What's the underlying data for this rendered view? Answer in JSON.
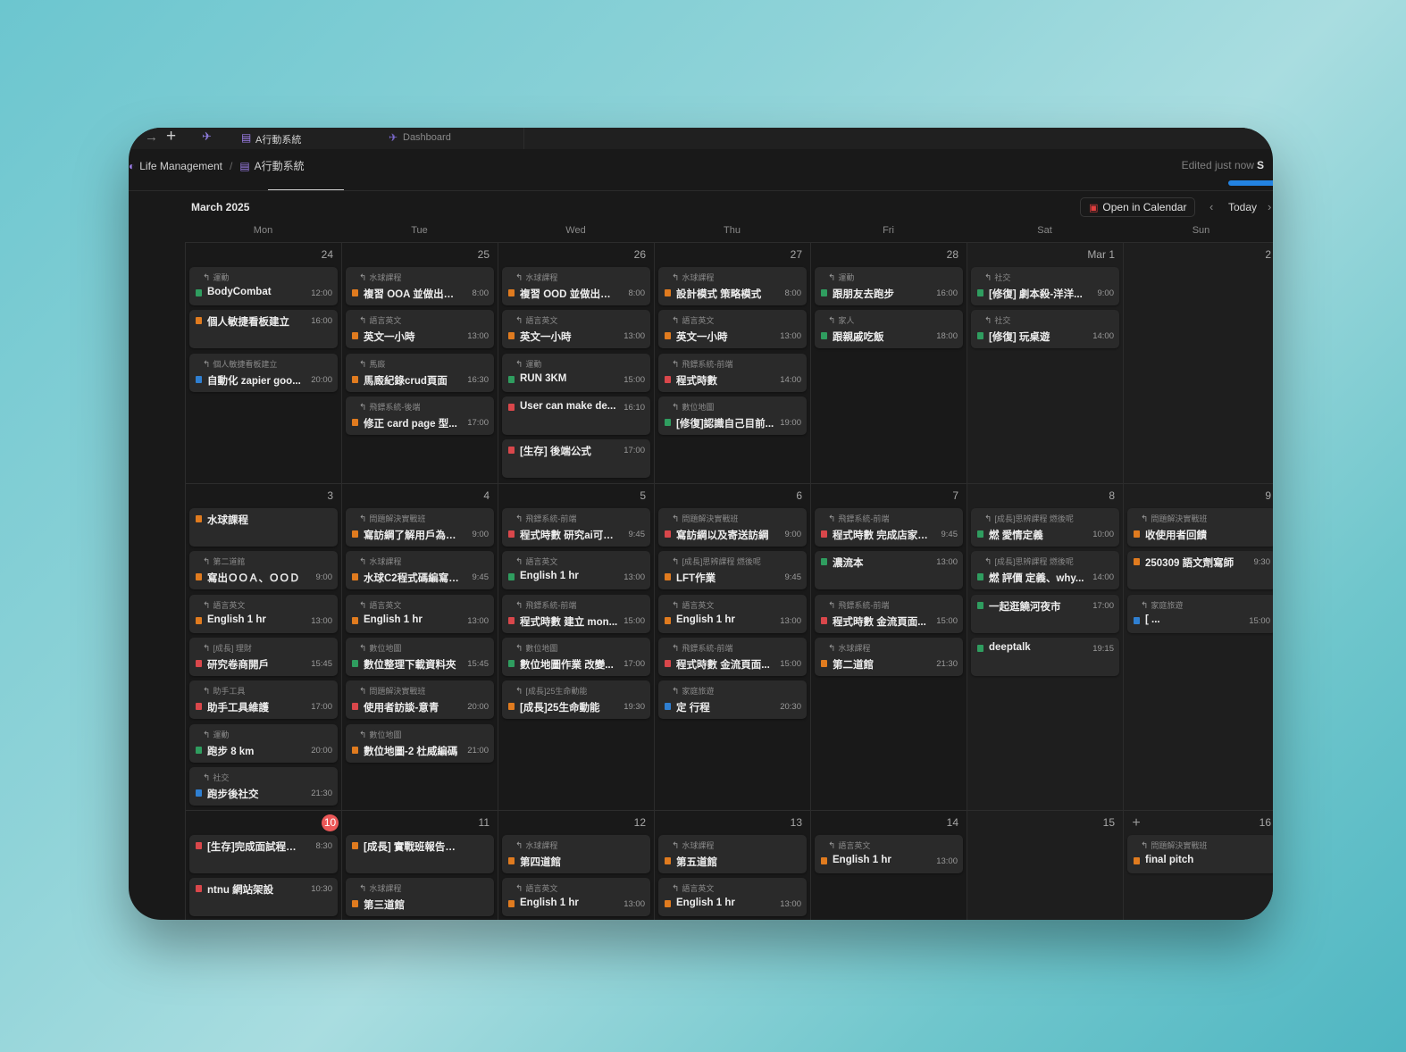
{
  "tabs": {
    "back_icon": "arrow-right-icon",
    "plus": "+",
    "items": [
      {
        "label": "A行動系統",
        "icon": "page-icon"
      },
      {
        "label": "Dashboard",
        "icon": "pin-icon"
      }
    ]
  },
  "breadcrumb": {
    "workspace": "Life Management",
    "separator": "/",
    "page": "A行動系統"
  },
  "header": {
    "edited": "Edited just now",
    "share": "S"
  },
  "calendar": {
    "month": "March 2025",
    "open_in_calendar": "Open in Calendar",
    "today": "Today",
    "prev": "‹",
    "next": "›",
    "weekdays": [
      "Mon",
      "Tue",
      "Wed",
      "Thu",
      "Fri",
      "Sat",
      "Sun"
    ],
    "colors": {
      "orange": "#e07b1f",
      "green": "#2f9d5f",
      "red": "#d9474b",
      "blue": "#2f7fd1",
      "today_badge": "#eb5757"
    },
    "weeks": [
      {
        "days": [
          {
            "num": "24",
            "events": [
              {
                "parent": "運動",
                "title": "BodyCombat",
                "time": "12:00",
                "color": "green"
              },
              {
                "parent": "",
                "title": "個人敏捷看板建立",
                "time": "16:00",
                "color": "orange"
              },
              {
                "parent": "個人敏捷看板建立",
                "title": "自動化 zapier goo...",
                "time": "20:00",
                "color": "blue"
              }
            ]
          },
          {
            "num": "25",
            "events": [
              {
                "parent": "水球課程",
                "title": "複習 OOA 並做出筆記",
                "time": "8:00",
                "color": "orange"
              },
              {
                "parent": "語言英文",
                "title": "英文一小時",
                "time": "13:00",
                "color": "orange"
              },
              {
                "parent": "馬廄",
                "title": "馬廄紀錄crud頁面",
                "time": "16:30",
                "color": "orange"
              },
              {
                "parent": "飛鏢系統-後端",
                "title": "修正 card page 型...",
                "time": "17:00",
                "color": "orange"
              }
            ]
          },
          {
            "num": "26",
            "events": [
              {
                "parent": "水球課程",
                "title": "複習 OOD 並做出筆記",
                "time": "8:00",
                "color": "orange"
              },
              {
                "parent": "語言英文",
                "title": "英文一小時",
                "time": "13:00",
                "color": "orange"
              },
              {
                "parent": "運動",
                "title": "RUN 3KM",
                "time": "15:00",
                "color": "green"
              },
              {
                "parent": "",
                "title": "User can make de...",
                "time": "16:10",
                "color": "red"
              },
              {
                "parent": "",
                "title": "[生存] 後端公式",
                "time": "17:00",
                "color": "red"
              }
            ]
          },
          {
            "num": "27",
            "events": [
              {
                "parent": "水球課程",
                "title": "設計模式 策略模式",
                "time": "8:00",
                "color": "orange"
              },
              {
                "parent": "語言英文",
                "title": "英文一小時",
                "time": "13:00",
                "color": "orange"
              },
              {
                "parent": "飛鏢系統-前端",
                "title": "程式時數",
                "time": "14:00",
                "color": "red"
              },
              {
                "parent": "數位地圖",
                "title": "[修復]認識自己目前...",
                "time": "19:00",
                "color": "green"
              }
            ]
          },
          {
            "num": "28",
            "events": [
              {
                "parent": "運動",
                "title": "跟朋友去跑步",
                "time": "16:00",
                "color": "green"
              },
              {
                "parent": "家人",
                "title": "跟親戚吃飯",
                "time": "18:00",
                "color": "green"
              }
            ]
          },
          {
            "num": "Mar 1",
            "events": [
              {
                "parent": "社交",
                "title": "[修復] 劇本殺-洋洋...",
                "time": "9:00",
                "color": "green"
              },
              {
                "parent": "社交",
                "title": "[修復] 玩桌遊",
                "time": "14:00",
                "color": "green"
              }
            ]
          },
          {
            "num": "2",
            "events": []
          }
        ]
      },
      {
        "days": [
          {
            "num": "3",
            "events": [
              {
                "parent": "",
                "title": "水球課程",
                "time": "",
                "color": "orange"
              },
              {
                "parent": "第二道館",
                "title": "寫出ＯＯＡ、ＯＯＤ",
                "time": "9:00",
                "color": "orange"
              },
              {
                "parent": "語言英文",
                "title": "English 1 hr",
                "time": "13:00",
                "color": "orange"
              },
              {
                "parent": "[成長] 理財",
                "title": "研究卷商開戶",
                "time": "15:45",
                "color": "red"
              },
              {
                "parent": "助手工具",
                "title": "助手工具維護",
                "time": "17:00",
                "color": "red"
              },
              {
                "parent": "運動",
                "title": "跑步 8 km",
                "time": "20:00",
                "color": "green"
              },
              {
                "parent": "社交",
                "title": "跑步後社交",
                "time": "21:30",
                "color": "blue"
              }
            ]
          },
          {
            "num": "4",
            "events": [
              {
                "parent": "問題解決實戰班",
                "title": "寫訪綱了解用戶為什...",
                "time": "9:00",
                "color": "orange"
              },
              {
                "parent": "水球課程",
                "title": "水球C2程式碼編寫與...",
                "time": "9:45",
                "color": "orange"
              },
              {
                "parent": "語言英文",
                "title": "English 1 hr",
                "time": "13:00",
                "color": "orange"
              },
              {
                "parent": "數位地圖",
                "title": "數位整理下載資料夾",
                "time": "15:45",
                "color": "green"
              },
              {
                "parent": "問題解決實戰班",
                "title": "使用者訪談-意青",
                "time": "20:00",
                "color": "red"
              },
              {
                "parent": "數位地圖",
                "title": "數位地圖-2 杜威編碼",
                "time": "21:00",
                "color": "orange"
              }
            ]
          },
          {
            "num": "5",
            "events": [
              {
                "parent": "飛鏢系統-前端",
                "title": "程式時數 研究ai可以...",
                "time": "9:45",
                "color": "red"
              },
              {
                "parent": "語言英文",
                "title": "English 1 hr",
                "time": "13:00",
                "color": "green"
              },
              {
                "parent": "飛鏢系統-前端",
                "title": "程式時數 建立 mon...",
                "time": "15:00",
                "color": "red"
              },
              {
                "parent": "數位地圖",
                "title": "數位地圖作業 改變...",
                "time": "17:00",
                "color": "green"
              },
              {
                "parent": "[成長]25生命動能",
                "title": "[成長]25生命動能",
                "time": "19:30",
                "color": "orange"
              }
            ]
          },
          {
            "num": "6",
            "events": [
              {
                "parent": "問題解決實戰班",
                "title": "寫訪綱以及寄送訪綱",
                "time": "9:00",
                "color": "red"
              },
              {
                "parent": "[成長]思辨課程 燃後呢",
                "title": "LFT作業",
                "time": "9:45",
                "color": "orange"
              },
              {
                "parent": "語言英文",
                "title": "English 1 hr",
                "time": "13:00",
                "color": "orange"
              },
              {
                "parent": "飛鏢系統-前端",
                "title": "程式時數 金流頁面...",
                "time": "15:00",
                "color": "red"
              },
              {
                "parent": "家庭旅遊",
                "title": "定  行程",
                "time": "20:30",
                "color": "blue"
              }
            ]
          },
          {
            "num": "7",
            "events": [
              {
                "parent": "飛鏢系統-前端",
                "title": "程式時數 完成店家頁...",
                "time": "9:45",
                "color": "red"
              },
              {
                "parent": "",
                "title": "濃流本",
                "time": "13:00",
                "color": "green"
              },
              {
                "parent": "飛鏢系統-前端",
                "title": "程式時數 金流頁面...",
                "time": "15:00",
                "color": "red"
              },
              {
                "parent": "水球課程",
                "title": "第二道館",
                "time": "21:30",
                "color": "orange"
              }
            ]
          },
          {
            "num": "8",
            "events": [
              {
                "parent": "[成長]思辨課程 燃後呢",
                "title": "燃 愛情定義",
                "time": "10:00",
                "color": "green"
              },
              {
                "parent": "[成長]思辨課程 燃後呢",
                "title": "燃 評價 定義、why...",
                "time": "14:00",
                "color": "green"
              },
              {
                "parent": "",
                "title": "一起逛饒河夜市",
                "time": "17:00",
                "color": "green"
              },
              {
                "parent": "",
                "title": "deeptalk",
                "time": "19:15",
                "color": "green"
              }
            ]
          },
          {
            "num": "9",
            "events": [
              {
                "parent": "問題解決實戰班",
                "title": "收使用者回饋",
                "time": "",
                "color": "orange"
              },
              {
                "parent": "",
                "title": "250309 語文劑寫師",
                "time": "9:30",
                "color": "orange"
              },
              {
                "parent": "家庭旅遊",
                "title": "[  ...",
                "time": "15:00",
                "color": "blue"
              }
            ]
          }
        ]
      },
      {
        "days": [
          {
            "num": "10",
            "today": true,
            "events": [
              {
                "parent": "",
                "title": "[生存]完成面試程式題",
                "time": "8:30",
                "color": "red"
              },
              {
                "parent": "",
                "title": "ntnu 網站架設",
                "time": "10:30",
                "color": "red"
              }
            ]
          },
          {
            "num": "11",
            "events": [
              {
                "parent": "",
                "title": "[成長] 實戰班報告頁面",
                "time": "",
                "color": "orange"
              },
              {
                "parent": "水球課程",
                "title": "第三道館",
                "time": "",
                "color": "orange"
              }
            ]
          },
          {
            "num": "12",
            "events": [
              {
                "parent": "水球課程",
                "title": "第四道館",
                "time": "",
                "color": "orange"
              },
              {
                "parent": "語言英文",
                "title": "English 1 hr",
                "time": "13:00",
                "color": "orange"
              }
            ]
          },
          {
            "num": "13",
            "events": [
              {
                "parent": "水球課程",
                "title": "第五道館",
                "time": "",
                "color": "orange"
              },
              {
                "parent": "語言英文",
                "title": "English 1 hr",
                "time": "13:00",
                "color": "orange"
              }
            ]
          },
          {
            "num": "14",
            "events": [
              {
                "parent": "語言英文",
                "title": "English 1 hr",
                "time": "13:00",
                "color": "orange"
              }
            ]
          },
          {
            "num": "15",
            "events": []
          },
          {
            "num": "16",
            "plus": "+",
            "events": [
              {
                "parent": "問題解決實戰班",
                "title": "final pitch",
                "time": "",
                "color": "orange"
              }
            ]
          }
        ]
      }
    ]
  }
}
